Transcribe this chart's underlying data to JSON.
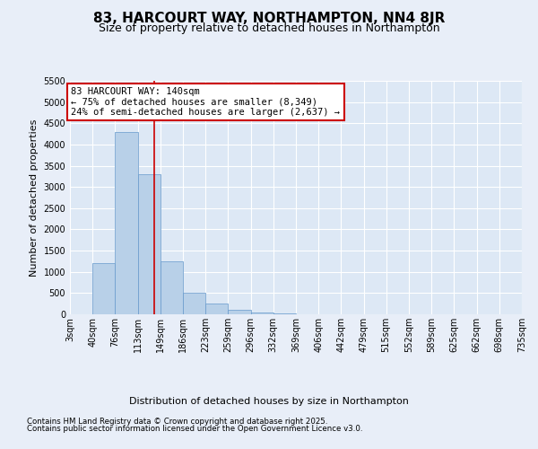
{
  "title": "83, HARCOURT WAY, NORTHAMPTON, NN4 8JR",
  "subtitle": "Size of property relative to detached houses in Northampton",
  "xlabel": "Distribution of detached houses by size in Northampton",
  "ylabel": "Number of detached properties",
  "bins": [
    "3sqm",
    "40sqm",
    "76sqm",
    "113sqm",
    "149sqm",
    "186sqm",
    "223sqm",
    "259sqm",
    "296sqm",
    "332sqm",
    "369sqm",
    "406sqm",
    "442sqm",
    "479sqm",
    "515sqm",
    "552sqm",
    "589sqm",
    "625sqm",
    "662sqm",
    "698sqm",
    "735sqm"
  ],
  "bin_edges": [
    3,
    40,
    76,
    113,
    149,
    186,
    223,
    259,
    296,
    332,
    369,
    406,
    442,
    479,
    515,
    552,
    589,
    625,
    662,
    698,
    735
  ],
  "bar_heights": [
    0,
    1200,
    4300,
    3300,
    1250,
    500,
    250,
    100,
    50,
    20,
    5,
    3,
    1,
    1,
    0,
    0,
    0,
    0,
    0,
    0
  ],
  "bar_color": "#b8d0e8",
  "bar_edgecolor": "#6699cc",
  "bg_color": "#dde8f5",
  "fig_bg_color": "#e8eef8",
  "grid_color": "#ffffff",
  "vline_x": 140,
  "vline_color": "#cc0000",
  "annotation_line1": "83 HARCOURT WAY: 140sqm",
  "annotation_line2": "← 75% of detached houses are smaller (8,349)",
  "annotation_line3": "24% of semi-detached houses are larger (2,637) →",
  "annotation_box_color": "#cc0000",
  "ylim": [
    0,
    5500
  ],
  "yticks": [
    0,
    500,
    1000,
    1500,
    2000,
    2500,
    3000,
    3500,
    4000,
    4500,
    5000,
    5500
  ],
  "footnote1": "Contains HM Land Registry data © Crown copyright and database right 2025.",
  "footnote2": "Contains public sector information licensed under the Open Government Licence v3.0.",
  "title_fontsize": 11,
  "subtitle_fontsize": 9,
  "tick_fontsize": 7,
  "label_fontsize": 8,
  "annotation_fontsize": 7.5
}
